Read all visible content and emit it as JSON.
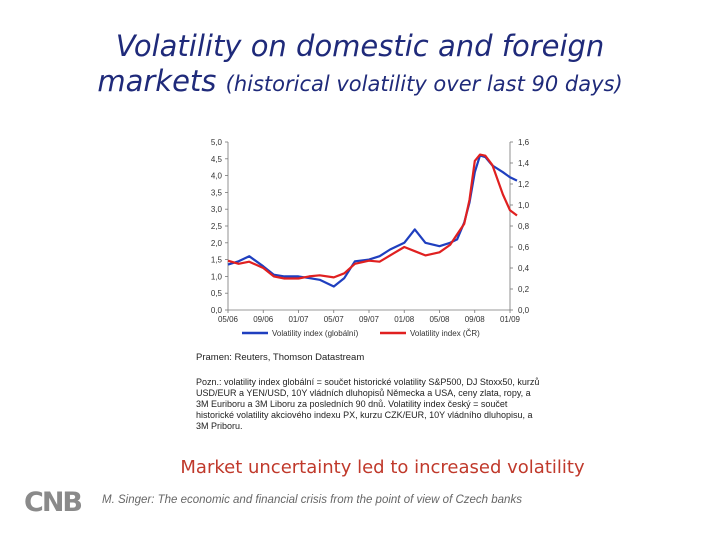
{
  "slide": {
    "title_line1": "Volatility on domestic and foreign",
    "title_line2_main": "markets ",
    "title_line2_paren": "(historical volatility over last 90 days)",
    "source": "Pramen: Reuters, Thomson Datastream",
    "note": "Pozn.: volatility index globální = součet historické volatility S&P500, DJ Stoxx50, kurzů USD/EUR a YEN/USD, 10Y vládních dluhopisů Německa a USA, ceny zlata, ropy, a 3M Euriboru a 3M Liboru za posledních 90 dnů. Volatility index český = součet historické volatility akciového indexu PX, kurzu CZK/EUR, 10Y vládního dluhopisu, a 3M Priboru.",
    "tagline": "Market uncertainty led to increased volatility",
    "footer": "M. Singer: The economic and financial crisis from the point of view of Czech banks",
    "logo": "CNB"
  },
  "chart_data": {
    "type": "line",
    "x_tick_labels": [
      "05/06",
      "09/06",
      "01/07",
      "05/07",
      "09/07",
      "01/08",
      "05/08",
      "09/08",
      "01/09"
    ],
    "y_left": {
      "lim": [
        0,
        5
      ],
      "ticks": [
        "0,0",
        "0,5",
        "1,0",
        "1,5",
        "2,0",
        "2,5",
        "3,0",
        "3,5",
        "4,0",
        "4,5",
        "5,0"
      ]
    },
    "y_right": {
      "lim": [
        0,
        1.6
      ],
      "ticks": [
        "0,0",
        "0,2",
        "0,4",
        "0,6",
        "0,8",
        "1,0",
        "1,2",
        "1,4",
        "1,6"
      ]
    },
    "legend_position": "bottom",
    "series": [
      {
        "name": "Volatility index (globální)",
        "color": "#1f3fbf",
        "axis": "left",
        "x": [
          0,
          0.3,
          0.6,
          1,
          1.3,
          1.6,
          2,
          2.3,
          2.6,
          3,
          3.3,
          3.6,
          4,
          4.3,
          4.6,
          5,
          5.3,
          5.6,
          6,
          6.3,
          6.5,
          6.7,
          6.85,
          7,
          7.15,
          7.3,
          7.5,
          7.8,
          8,
          8.2
        ],
        "values": [
          1.35,
          1.45,
          1.6,
          1.3,
          1.05,
          1.0,
          1.0,
          0.95,
          0.9,
          0.7,
          0.95,
          1.45,
          1.5,
          1.6,
          1.8,
          2.0,
          2.4,
          2.0,
          1.9,
          2.0,
          2.1,
          2.6,
          3.2,
          4.1,
          4.6,
          4.55,
          4.3,
          4.1,
          3.95,
          3.85
        ]
      },
      {
        "name": "Volatility index (ČR)",
        "color": "#e02020",
        "axis": "right",
        "x": [
          0,
          0.3,
          0.6,
          1,
          1.3,
          1.6,
          2,
          2.3,
          2.6,
          3,
          3.3,
          3.6,
          4,
          4.3,
          4.6,
          5,
          5.3,
          5.6,
          6,
          6.3,
          6.5,
          6.7,
          6.85,
          7,
          7.15,
          7.3,
          7.5,
          7.8,
          8,
          8.2
        ],
        "values": [
          0.47,
          0.44,
          0.46,
          0.4,
          0.32,
          0.3,
          0.3,
          0.32,
          0.33,
          0.31,
          0.35,
          0.44,
          0.47,
          0.46,
          0.52,
          0.6,
          0.56,
          0.52,
          0.55,
          0.62,
          0.72,
          0.82,
          1.05,
          1.42,
          1.48,
          1.47,
          1.38,
          1.1,
          0.95,
          0.9
        ]
      }
    ]
  }
}
